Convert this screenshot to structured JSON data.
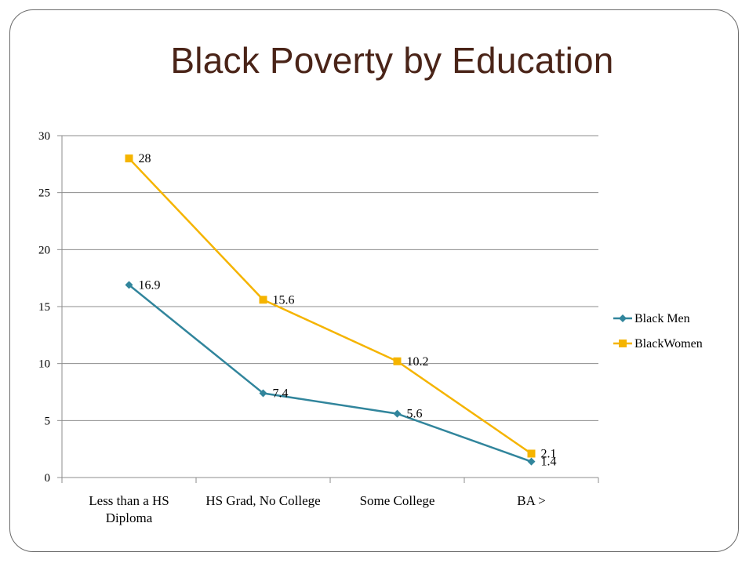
{
  "slide": {
    "title": "Black Poverty by Education"
  },
  "chart_data": {
    "type": "line",
    "title": "",
    "xlabel": "",
    "ylabel": "",
    "categories": [
      [
        "Less than a HS",
        "Diploma"
      ],
      [
        "HS Grad, No College"
      ],
      [
        "Some College"
      ],
      [
        "BA >"
      ]
    ],
    "ylim": [
      0,
      30
    ],
    "yticks": [
      0,
      5,
      10,
      15,
      20,
      25,
      30
    ],
    "grid": true,
    "legend_position": "right",
    "series": [
      {
        "name": "Black Men",
        "values": [
          16.9,
          7.4,
          5.6,
          1.4
        ],
        "labels": [
          "16.9",
          "7.4",
          "5.6",
          "1.4"
        ],
        "color": "#31859c",
        "marker": "diamond"
      },
      {
        "name": "Black Women",
        "values": [
          28,
          15.6,
          10.2,
          2.1
        ],
        "labels": [
          "28",
          "15.6",
          "10.2",
          "2.1"
        ],
        "color": "#f5b400",
        "marker": "square"
      }
    ],
    "legend_labels": [
      "Black Men",
      "BlackWomen"
    ]
  }
}
